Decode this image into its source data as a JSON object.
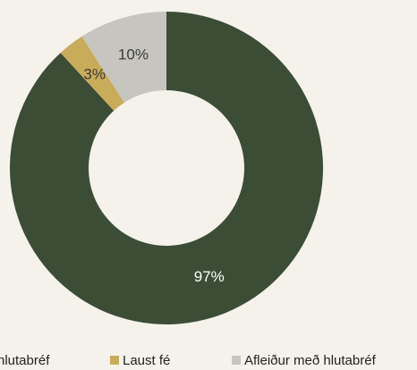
{
  "chart_data": {
    "type": "donut",
    "categories": [
      "hlutabréf",
      "Laust fé",
      "Afleiður með hlutabréf"
    ],
    "values": [
      97,
      3,
      10
    ],
    "value_labels": [
      "97%",
      "3%",
      "10%"
    ],
    "colors": [
      "#3c4d36",
      "#c8ac5a",
      "#c6c5bf"
    ],
    "legend": "bottom"
  }
}
